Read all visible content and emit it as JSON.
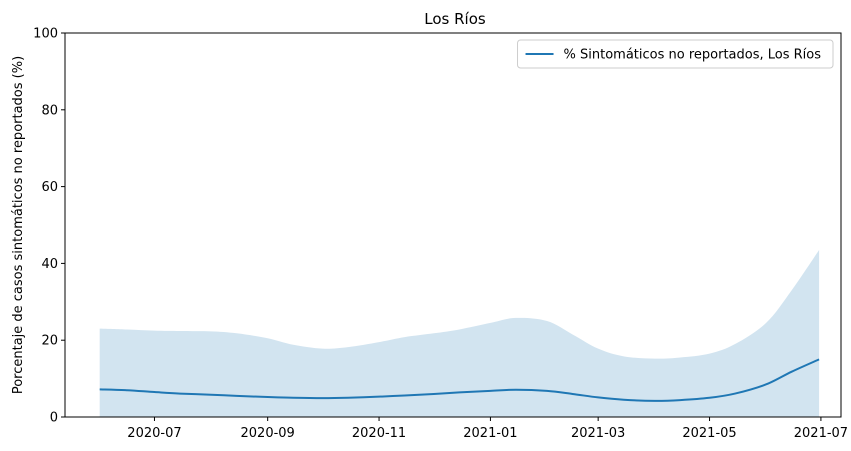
{
  "chart_data": {
    "type": "line",
    "title": "Los Ríos",
    "xlabel": "",
    "ylabel": "Porcentaje de casos sintomáticos no reportados (%)",
    "ylim": [
      0,
      100
    ],
    "xlim": [
      "2020-05-13",
      "2021-07-12"
    ],
    "y_ticks": [
      0,
      20,
      40,
      60,
      80,
      100
    ],
    "x_ticks": [
      "2020-07",
      "2020-09",
      "2020-11",
      "2021-01",
      "2021-03",
      "2021-05",
      "2021-07"
    ],
    "grid": false,
    "legend_placement": "top-right",
    "colors": {
      "line": "#1f77b4",
      "band": "#1f77b4"
    },
    "series": [
      {
        "name": "% Sintomáticos no reportados, Los Ríos",
        "x": [
          "2020-06-01",
          "2020-06-15",
          "2020-07-01",
          "2020-07-15",
          "2020-08-01",
          "2020-08-15",
          "2020-09-01",
          "2020-09-15",
          "2020-10-01",
          "2020-10-15",
          "2020-11-01",
          "2020-11-15",
          "2020-12-01",
          "2020-12-15",
          "2021-01-01",
          "2021-01-15",
          "2021-02-01",
          "2021-02-15",
          "2021-03-01",
          "2021-03-15",
          "2021-04-01",
          "2021-04-15",
          "2021-05-01",
          "2021-05-15",
          "2021-06-01",
          "2021-06-15",
          "2021-06-30"
        ],
        "y": [
          7.2,
          7.0,
          6.5,
          6.1,
          5.8,
          5.5,
          5.2,
          5.0,
          4.9,
          5.0,
          5.3,
          5.6,
          6.0,
          6.4,
          6.8,
          7.1,
          6.8,
          6.0,
          5.1,
          4.5,
          4.2,
          4.4,
          5.0,
          6.1,
          8.5,
          11.8,
          15.0
        ],
        "lower": [
          0,
          0,
          0,
          0,
          0,
          0,
          0,
          0,
          0,
          0,
          0,
          0,
          0,
          0,
          0,
          0,
          0,
          0,
          0,
          0,
          0,
          0,
          0,
          0,
          0,
          0,
          0
        ],
        "upper": [
          23.0,
          22.8,
          22.5,
          22.4,
          22.3,
          21.8,
          20.5,
          18.8,
          17.8,
          18.2,
          19.5,
          20.8,
          21.8,
          22.8,
          24.5,
          25.8,
          25.0,
          21.5,
          17.8,
          15.8,
          15.2,
          15.5,
          16.5,
          19.0,
          24.5,
          33.0,
          43.5
        ]
      }
    ]
  }
}
